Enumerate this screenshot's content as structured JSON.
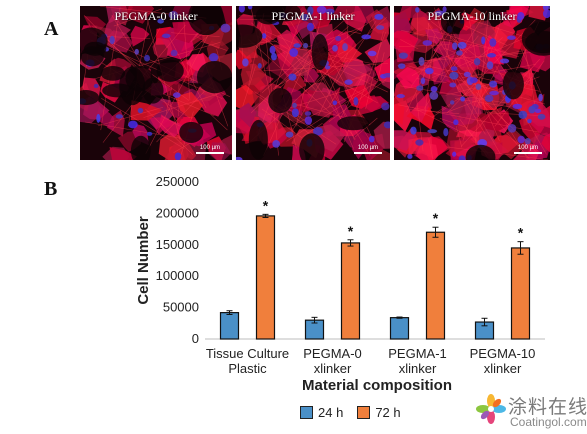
{
  "panel_a": {
    "letter": "A",
    "images": [
      {
        "label": "PEGMA-0 linker",
        "scale": "100 µm"
      },
      {
        "label": "PEGMA-1 linker",
        "scale": "100 µm"
      },
      {
        "label": "PEGMA-10 linker",
        "scale": "100 µm"
      }
    ]
  },
  "panel_b": {
    "letter": "B"
  },
  "chart_data": {
    "type": "bar",
    "categories": [
      "Tissue Culture\nPlastic",
      "PEGMA-0\nxlinker",
      "PEGMA-1\nxlinker",
      "PEGMA-10\nxlinker"
    ],
    "series": [
      {
        "name": "24 h",
        "color": "#4a90c8",
        "values": [
          42000,
          30000,
          34000,
          27000
        ],
        "errors": [
          3000,
          4500,
          1000,
          6000
        ]
      },
      {
        "name": "72 h",
        "color": "#f07f3c",
        "values": [
          196000,
          153000,
          170000,
          145000
        ],
        "errors": [
          2500,
          5000,
          8000,
          10000
        ]
      }
    ],
    "significance": [
      "*",
      "*",
      "*",
      "*"
    ],
    "ylabel": "Cell Number",
    "xlabel": "Material composition",
    "ylim": [
      0,
      250000
    ],
    "yticks": [
      "0",
      "50000",
      "100000",
      "150000",
      "200000",
      "250000"
    ],
    "legend_position": "bottom"
  },
  "watermark": {
    "cn": "涂料在线",
    "en": "Coatingol.com"
  }
}
